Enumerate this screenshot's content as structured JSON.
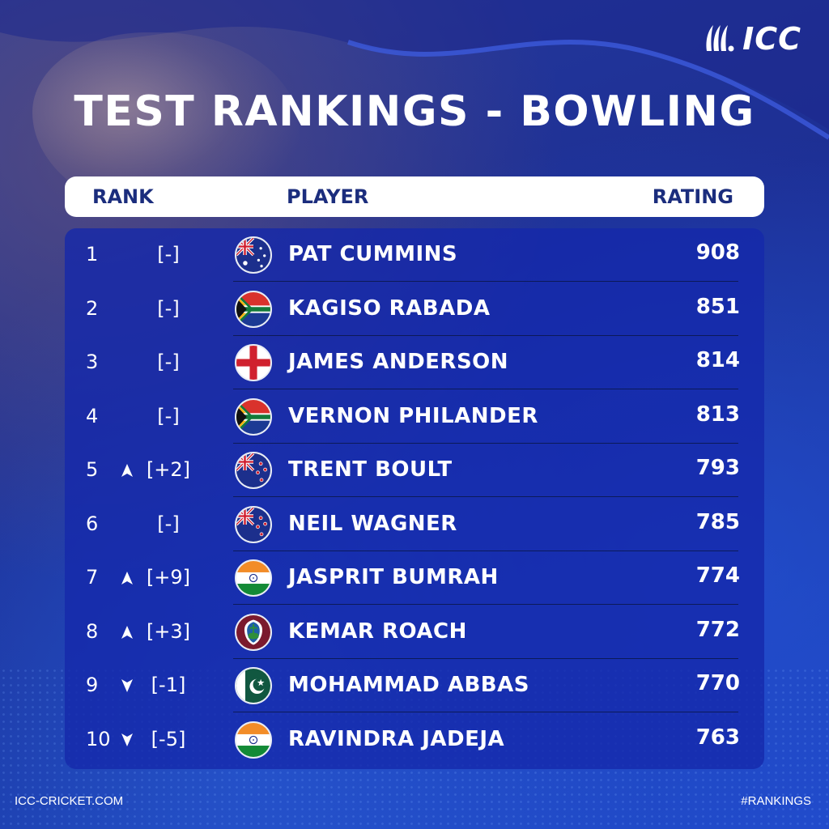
{
  "brand": {
    "logo_text": "ICC"
  },
  "title": "TEST RANKINGS - BOWLING",
  "header": {
    "rank": "RANK",
    "player": "PLAYER",
    "rating": "RATING"
  },
  "rows": [
    {
      "rank": "1",
      "trend": "none",
      "move": "[-]",
      "flag": "australia",
      "player": "PAT CUMMINS",
      "rating": "908"
    },
    {
      "rank": "2",
      "trend": "none",
      "move": "[-]",
      "flag": "south-africa",
      "player": "KAGISO RABADA",
      "rating": "851"
    },
    {
      "rank": "3",
      "trend": "none",
      "move": "[-]",
      "flag": "england",
      "player": "JAMES ANDERSON",
      "rating": "814"
    },
    {
      "rank": "4",
      "trend": "none",
      "move": "[-]",
      "flag": "south-africa",
      "player": "VERNON PHILANDER",
      "rating": "813"
    },
    {
      "rank": "5",
      "trend": "up",
      "move": "[+2]",
      "flag": "new-zealand",
      "player": "TRENT BOULT",
      "rating": "793"
    },
    {
      "rank": "6",
      "trend": "none",
      "move": "[-]",
      "flag": "new-zealand",
      "player": "NEIL WAGNER",
      "rating": "785"
    },
    {
      "rank": "7",
      "trend": "up",
      "move": "[+9]",
      "flag": "india",
      "player": "JASPRIT BUMRAH",
      "rating": "774"
    },
    {
      "rank": "8",
      "trend": "up",
      "move": "[+3]",
      "flag": "west-indies",
      "player": "KEMAR ROACH",
      "rating": "772"
    },
    {
      "rank": "9",
      "trend": "down",
      "move": "[-1]",
      "flag": "pakistan",
      "player": "MOHAMMAD ABBAS",
      "rating": "770"
    },
    {
      "rank": "10",
      "trend": "down",
      "move": "[-5]",
      "flag": "india",
      "player": "RAVINDRA JADEJA",
      "rating": "763"
    }
  ],
  "footer": {
    "left": "ICC-CRICKET.COM",
    "right": "#RANKINGS"
  }
}
